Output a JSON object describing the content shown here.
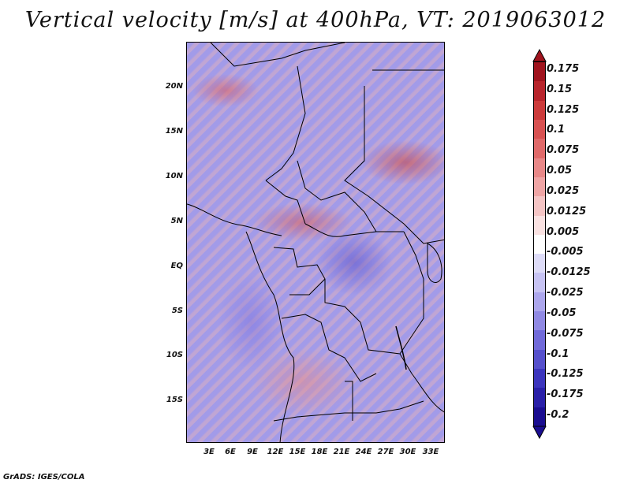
{
  "title": "Vertical velocity [m/s] at 400hPa, VT: 2019063012",
  "footer": "GrADS: IGES/COLA",
  "map": {
    "lat_labels": [
      "20N",
      "15N",
      "10N",
      "5N",
      "EQ",
      "5S",
      "10S",
      "15S"
    ],
    "lon_labels": [
      "3E",
      "6E",
      "9E",
      "12E",
      "15E",
      "18E",
      "21E",
      "24E",
      "27E",
      "30E",
      "33E"
    ]
  },
  "colorbar": {
    "labels": [
      "0.175",
      "0.15",
      "0.125",
      "0.1",
      "0.075",
      "0.05",
      "0.025",
      "0.0125",
      "0.005",
      "-0.005",
      "-0.0125",
      "-0.025",
      "-0.05",
      "-0.075",
      "-0.1",
      "-0.125",
      "-0.175",
      "-0.2"
    ],
    "colors": [
      "#a0141e",
      "#b8252c",
      "#cc3b3b",
      "#d85252",
      "#e06a6a",
      "#e88888",
      "#efa5a5",
      "#f5c5c5",
      "#fae2e2",
      "#ffffff",
      "#dedcf8",
      "#c7c3f3",
      "#aca6ec",
      "#9089e3",
      "#716ad9",
      "#5650cc",
      "#3c35bd",
      "#2a20a8",
      "#1a0d90"
    ]
  }
}
